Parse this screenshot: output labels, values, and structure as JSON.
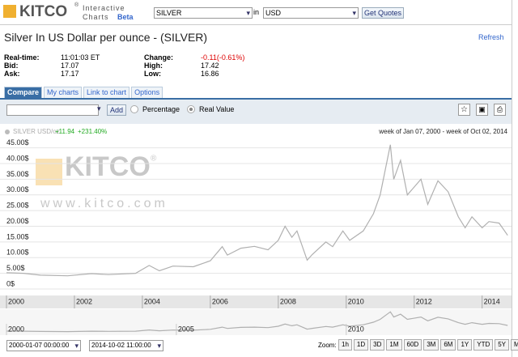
{
  "header": {
    "logo": "KITCO",
    "logo_mark": "®",
    "product": "Interactive",
    "product2": "Charts",
    "beta": "Beta",
    "symbol": "SILVER",
    "in": "in",
    "currency": "USD",
    "button": "Get Quotes"
  },
  "title": "Silver In US Dollar per ounce - (SILVER)",
  "refresh": "Refresh",
  "quote": {
    "realtime_label": "Real-time:",
    "realtime": "11:01:03 ET",
    "bid_label": "Bid:",
    "bid": "17.07",
    "ask_label": "Ask:",
    "ask": "17.17",
    "change_label": "Change:",
    "change": "-0.11(-0.61%)",
    "high_label": "High:",
    "high": "17.42",
    "low_label": "Low:",
    "low": "16.86"
  },
  "tabs": [
    "Compare",
    "My charts",
    "Link to chart",
    "Options"
  ],
  "toolbar": {
    "add": "Add",
    "percentage": "Percentage",
    "real_value": "Real Value"
  },
  "legend": {
    "name": "SILVER USD/oz",
    "change": "+11.94",
    "change_pct": "+231.40%",
    "range": "week of Jan 07, 2000 - week of Oct 02, 2014"
  },
  "watermark": {
    "logo": "KITCO",
    "mark": "®",
    "url": "www.kitco.com"
  },
  "chart": {
    "type": "line",
    "color": "#b0b0b0",
    "x": [
      2000,
      2000.5,
      2001,
      2001.8,
      2002.5,
      2003,
      2003.8,
      2004.2,
      2004.5,
      2004.9,
      2005.5,
      2006,
      2006.35,
      2006.5,
      2006.9,
      2007.3,
      2007.7,
      2008,
      2008.2,
      2008.4,
      2008.55,
      2008.85,
      2009,
      2009.4,
      2009.6,
      2009.9,
      2010.1,
      2010.5,
      2010.8,
      2011,
      2011.3,
      2011.4,
      2011.6,
      2011.8,
      2012.2,
      2012.4,
      2012.7,
      2013,
      2013.3,
      2013.5,
      2013.7,
      2014,
      2014.2,
      2014.5,
      2014.75
    ],
    "values": [
      5.2,
      5.0,
      4.4,
      4.2,
      4.9,
      4.6,
      5.0,
      7.5,
      5.8,
      7.3,
      7.1,
      9.0,
      13.5,
      10.8,
      13.0,
      13.6,
      12.5,
      15.5,
      20.0,
      16.5,
      18.5,
      9.2,
      11.0,
      15.0,
      13.5,
      18.5,
      15.5,
      18.5,
      24.0,
      30.0,
      46.0,
      35.0,
      41.0,
      30.0,
      35.0,
      27.0,
      34.5,
      31.0,
      23.0,
      19.5,
      23.0,
      19.5,
      21.5,
      21.0,
      17.1
    ],
    "xlim": [
      2000,
      2014.77
    ],
    "xticks": [
      2000,
      2002,
      2004,
      2006,
      2008,
      2010,
      2012,
      2014
    ],
    "ylim": [
      0,
      48
    ],
    "yticks": [
      {
        "value": 0,
        "label": "0$"
      },
      {
        "value": 5,
        "label": "5.00$"
      },
      {
        "value": 10,
        "label": "10.00$"
      },
      {
        "value": 15,
        "label": "15.00$"
      },
      {
        "value": 20,
        "label": "20.00$"
      },
      {
        "value": 25,
        "label": "25.00$"
      },
      {
        "value": 30,
        "label": "30.00$"
      },
      {
        "value": 35,
        "label": "35.00$"
      },
      {
        "value": 40,
        "label": "40.00$"
      },
      {
        "value": 45,
        "label": "45.00$"
      }
    ],
    "grid": true,
    "navigator_xticks": [
      2000,
      2005,
      2010
    ]
  },
  "range": {
    "from": "2000-01-07 00:00:00",
    "to": "2014-10-02 11:00:00"
  },
  "zoom": {
    "label": "Zoom:",
    "buttons": [
      "1h",
      "1D",
      "3D",
      "1M",
      "60D",
      "3M",
      "6M",
      "1Y",
      "YTD",
      "5Y",
      "MAX"
    ]
  }
}
